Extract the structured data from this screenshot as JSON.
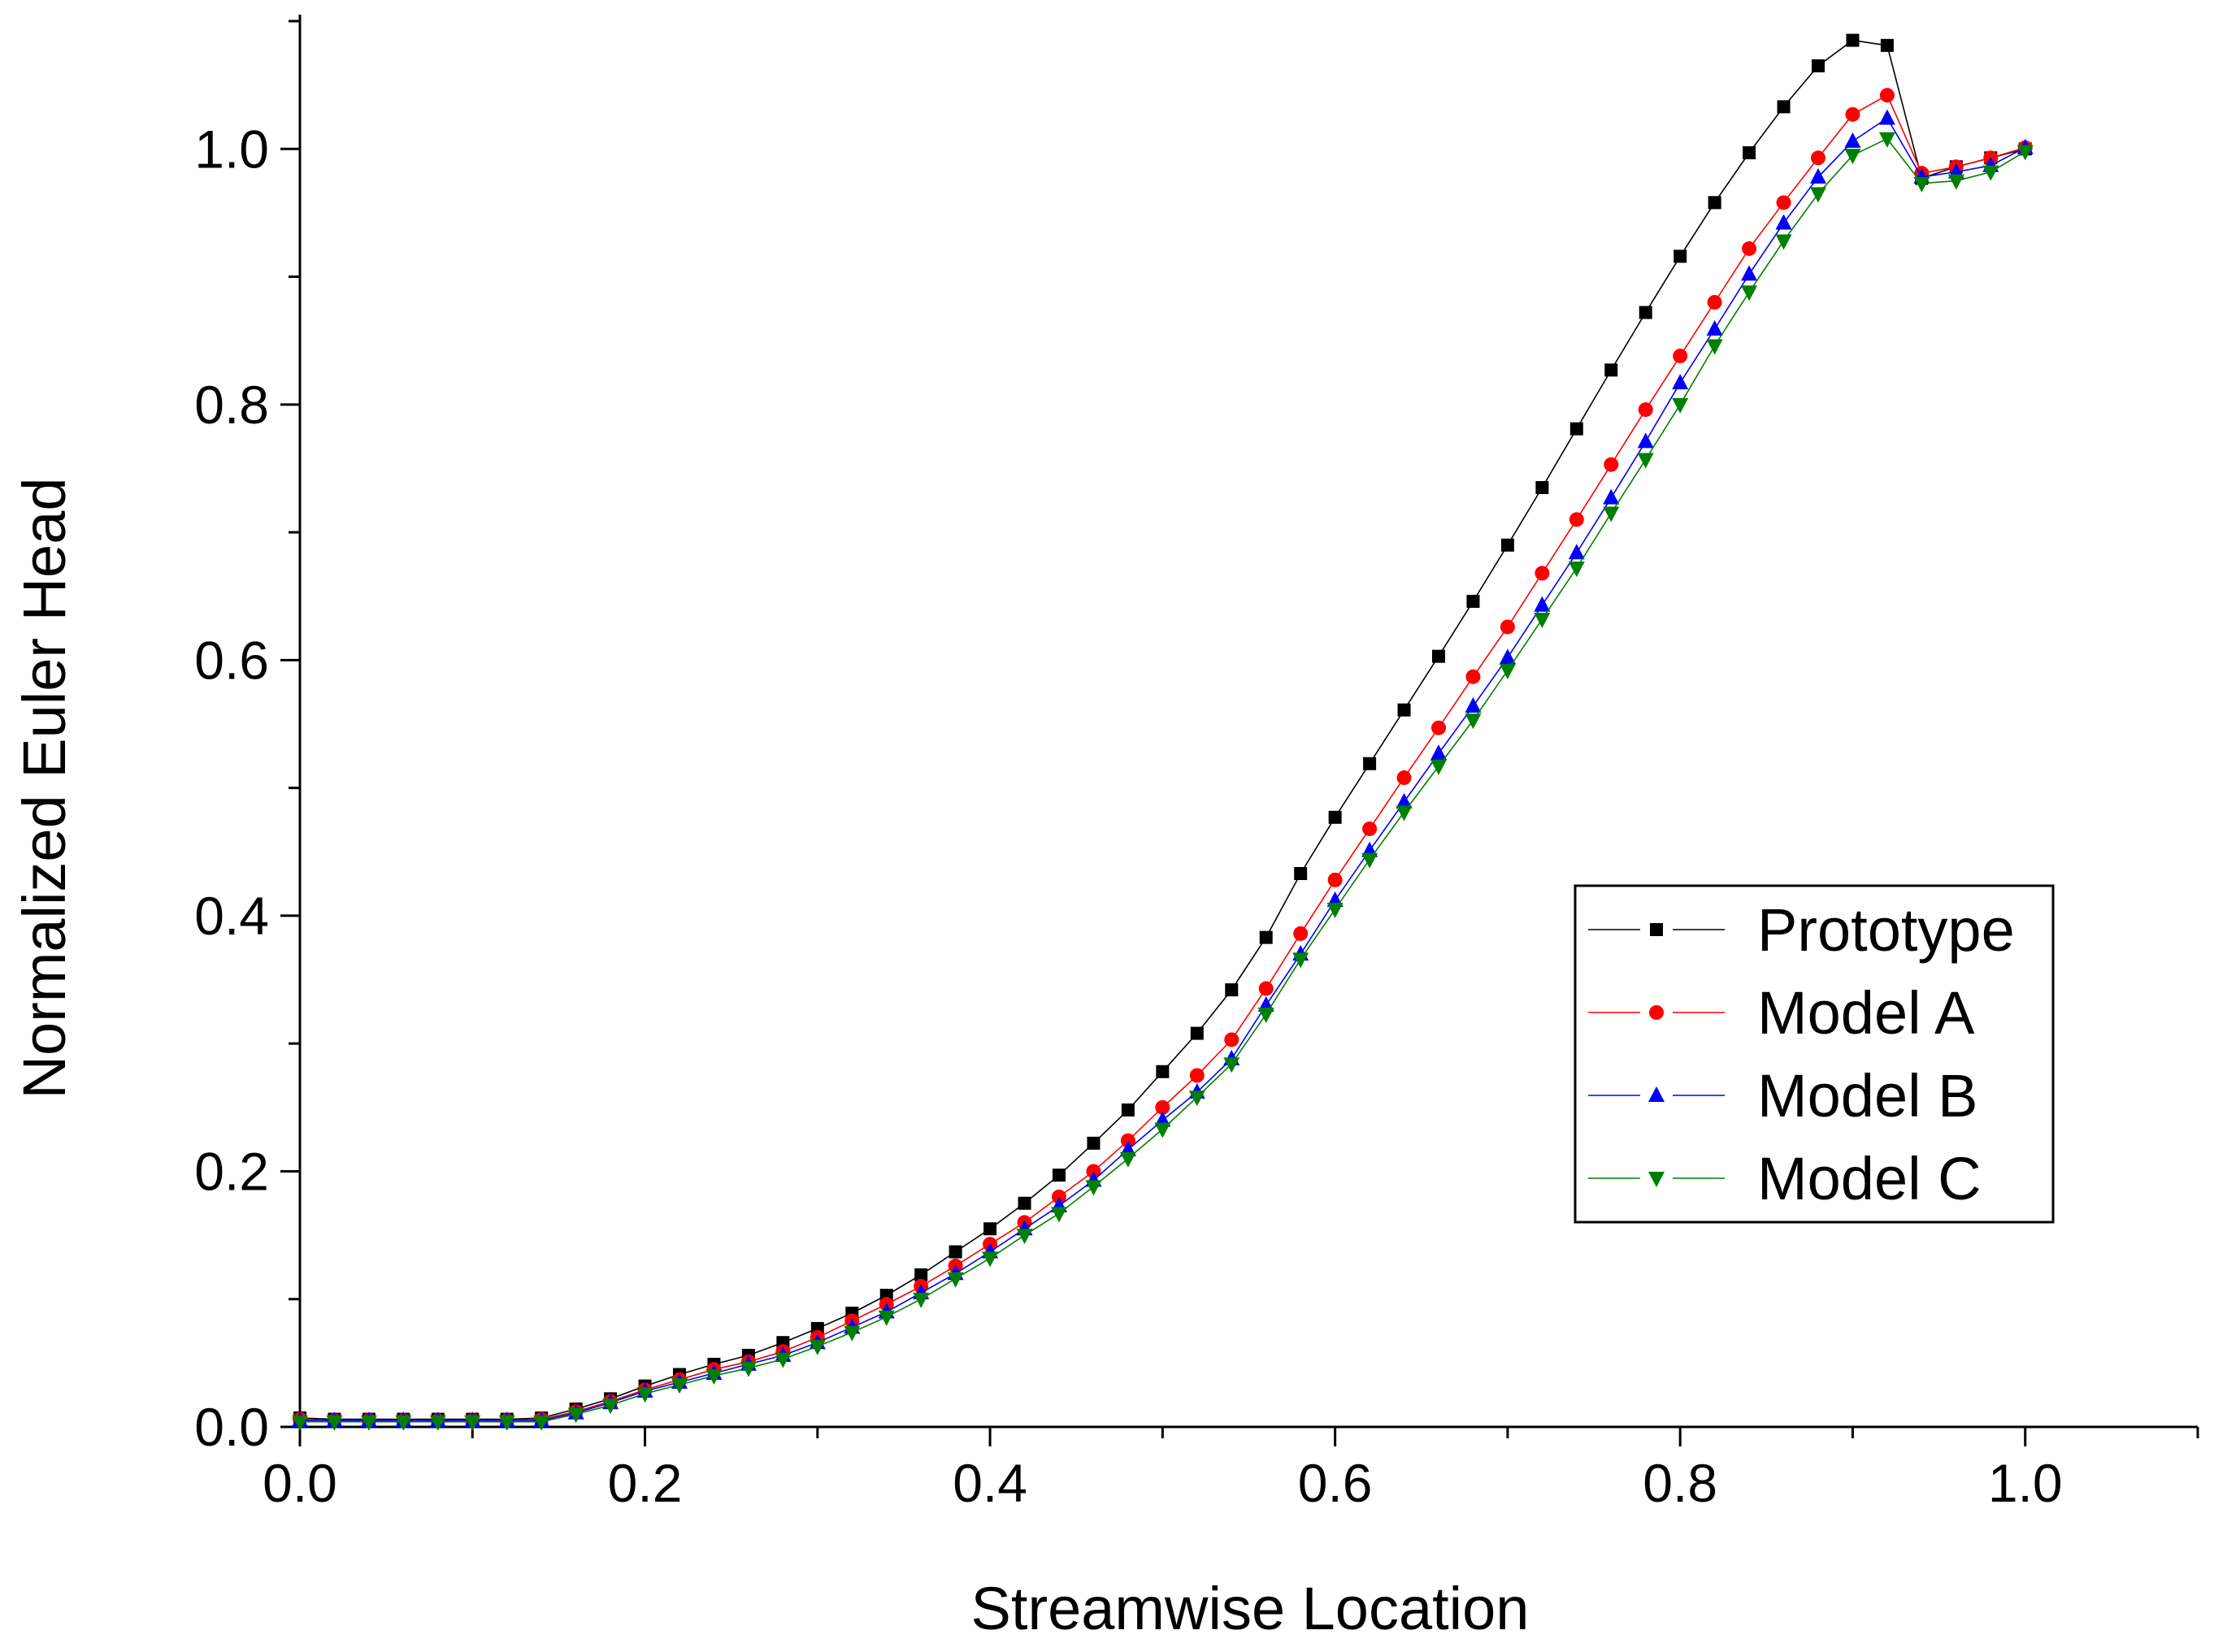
{
  "chart_data": {
    "type": "line",
    "title": "",
    "xlabel": "Streamwise Location",
    "ylabel": "Normalized Euler Head",
    "xlim": [
      0.0,
      1.1
    ],
    "ylim": [
      0.0,
      1.1
    ],
    "xticks": [
      0.0,
      0.2,
      0.4,
      0.6,
      0.8,
      1.0
    ],
    "xtick_labels": [
      "0.0",
      "0.2",
      "0.4",
      "0.6",
      "0.8",
      "1.0"
    ],
    "yticks": [
      0.0,
      0.2,
      0.4,
      0.6,
      0.8,
      1.0
    ],
    "ytick_labels": [
      "0.0",
      "0.2",
      "0.4",
      "0.6",
      "0.8",
      "1.0"
    ],
    "grid": false,
    "legend_position": "lower-right",
    "x": [
      0.0,
      0.02,
      0.04,
      0.06,
      0.08,
      0.1,
      0.12,
      0.14,
      0.16,
      0.18,
      0.2,
      0.22,
      0.24,
      0.26,
      0.28,
      0.3,
      0.32,
      0.34,
      0.36,
      0.38,
      0.4,
      0.42,
      0.44,
      0.46,
      0.48,
      0.5,
      0.52,
      0.54,
      0.56,
      0.58,
      0.6,
      0.62,
      0.64,
      0.66,
      0.68,
      0.7,
      0.72,
      0.74,
      0.76,
      0.78,
      0.8,
      0.82,
      0.84,
      0.86,
      0.88,
      0.9,
      0.92,
      0.94,
      0.96,
      0.98,
      1.0
    ],
    "series": [
      {
        "name": "Prototype",
        "color": "#000000",
        "marker": "square",
        "values": [
          0.007,
          0.006,
          0.006,
          0.006,
          0.006,
          0.006,
          0.006,
          0.007,
          0.014,
          0.022,
          0.032,
          0.041,
          0.049,
          0.056,
          0.066,
          0.077,
          0.089,
          0.103,
          0.119,
          0.137,
          0.155,
          0.175,
          0.197,
          0.222,
          0.248,
          0.278,
          0.308,
          0.342,
          0.383,
          0.433,
          0.477,
          0.519,
          0.561,
          0.603,
          0.646,
          0.69,
          0.735,
          0.781,
          0.827,
          0.872,
          0.916,
          0.958,
          0.997,
          1.033,
          1.065,
          1.085,
          1.081,
          0.977,
          0.986,
          0.993,
          1.0
        ]
      },
      {
        "name": "Model A",
        "color": "#ff0000",
        "marker": "circle",
        "values": [
          0.006,
          0.005,
          0.005,
          0.005,
          0.005,
          0.005,
          0.005,
          0.006,
          0.012,
          0.02,
          0.029,
          0.037,
          0.045,
          0.051,
          0.059,
          0.07,
          0.083,
          0.096,
          0.11,
          0.126,
          0.143,
          0.16,
          0.18,
          0.2,
          0.224,
          0.25,
          0.275,
          0.303,
          0.343,
          0.386,
          0.428,
          0.468,
          0.508,
          0.547,
          0.587,
          0.626,
          0.668,
          0.71,
          0.753,
          0.796,
          0.838,
          0.88,
          0.922,
          0.958,
          0.993,
          1.027,
          1.042,
          0.981,
          0.986,
          0.993,
          1.001
        ]
      },
      {
        "name": "Model B",
        "color": "#0000ff",
        "marker": "triangle-up",
        "values": [
          0.005,
          0.005,
          0.005,
          0.005,
          0.005,
          0.005,
          0.005,
          0.005,
          0.011,
          0.019,
          0.028,
          0.035,
          0.042,
          0.049,
          0.056,
          0.066,
          0.078,
          0.09,
          0.105,
          0.12,
          0.137,
          0.155,
          0.173,
          0.193,
          0.217,
          0.24,
          0.262,
          0.288,
          0.33,
          0.37,
          0.412,
          0.451,
          0.489,
          0.527,
          0.564,
          0.602,
          0.643,
          0.684,
          0.727,
          0.771,
          0.817,
          0.859,
          0.902,
          0.942,
          0.978,
          1.006,
          1.024,
          0.978,
          0.982,
          0.987,
          1.001
        ]
      },
      {
        "name": "Model C",
        "color": "#008000",
        "marker": "triangle-down",
        "values": [
          0.004,
          0.004,
          0.004,
          0.004,
          0.004,
          0.004,
          0.004,
          0.004,
          0.01,
          0.017,
          0.026,
          0.033,
          0.04,
          0.046,
          0.053,
          0.063,
          0.074,
          0.086,
          0.1,
          0.116,
          0.132,
          0.15,
          0.167,
          0.188,
          0.21,
          0.233,
          0.258,
          0.284,
          0.323,
          0.366,
          0.405,
          0.444,
          0.481,
          0.517,
          0.553,
          0.592,
          0.632,
          0.672,
          0.715,
          0.757,
          0.8,
          0.846,
          0.888,
          0.928,
          0.965,
          0.995,
          1.008,
          0.973,
          0.975,
          0.982,
          0.998
        ]
      }
    ]
  }
}
